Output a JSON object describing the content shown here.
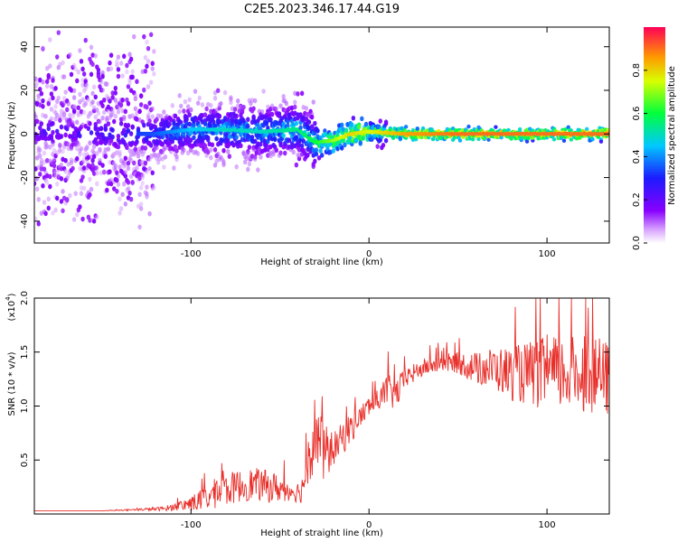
{
  "figure": {
    "title": "C2E5.2023.346.17.44.G19"
  },
  "chart_data": [
    {
      "type": "heatmap",
      "title": "C2E5.2023.346.17.44.G19",
      "xlabel": "Height of straight line (km)",
      "ylabel": "Frequency (Hz)",
      "xlim": [
        -188,
        135
      ],
      "ylim": [
        -50,
        49
      ],
      "xticks": [
        -100,
        0,
        100
      ],
      "xtick_labels": [
        "-100",
        "0",
        "100"
      ],
      "yticks": [
        -40,
        -20,
        0,
        20,
        40
      ],
      "ytick_labels": [
        "-40",
        "-20",
        "0",
        "20",
        "40"
      ],
      "grid": false,
      "description_points": {
        "x": [
          -180,
          -160,
          -140,
          -120,
          -100,
          -80,
          -60,
          -40,
          -30,
          -20,
          -10,
          0,
          20,
          50,
          80,
          110,
          130
        ],
        "center_freq": [
          1,
          0,
          0,
          0,
          2,
          2,
          1,
          2,
          -4,
          -3,
          0,
          1,
          0,
          0,
          0,
          0,
          0
        ],
        "peak_amplitude": [
          0.25,
          0.25,
          0.3,
          0.35,
          0.45,
          0.5,
          0.5,
          0.55,
          0.6,
          0.7,
          0.8,
          0.75,
          0.85,
          0.9,
          0.9,
          0.9,
          0.9
        ]
      },
      "colorbar": {
        "label": "Normalized spectral amplitude",
        "range": [
          0,
          1
        ],
        "ticks": [
          0.0,
          0.2,
          0.4,
          0.6,
          0.8
        ],
        "tick_labels": [
          "0.0",
          "0.2",
          "0.4",
          "0.6",
          "0.8"
        ],
        "colormap": "rainbow-white-to-red"
      }
    },
    {
      "type": "line",
      "xlabel": "Height of straight line (km)",
      "ylabel": "SNR (10 * v/v)",
      "y_multiplier": "(x10",
      "y_multiplier_exp": "4",
      "xlim": [
        -188,
        135
      ],
      "ylim": [
        0,
        2.0
      ],
      "xticks": [
        -100,
        0,
        100
      ],
      "xtick_labels": [
        "-100",
        "0",
        "100"
      ],
      "yticks": [
        0.5,
        1.0,
        1.5,
        2.0
      ],
      "ytick_labels": [
        "0.5",
        "1.0",
        "1.5",
        "2.0"
      ],
      "grid": false,
      "series": [
        {
          "color": "#e8302b",
          "x": [
            -188,
            -170,
            -150,
            -130,
            -115,
            -105,
            -95,
            -85,
            -75,
            -65,
            -55,
            -45,
            -38,
            -33,
            -30,
            -26,
            -20,
            -15,
            -10,
            -5,
            0,
            5,
            10,
            15,
            20,
            30,
            40,
            50,
            60,
            70,
            80,
            90,
            100,
            110,
            120,
            130,
            135
          ],
          "y": [
            0.03,
            0.03,
            0.03,
            0.04,
            0.05,
            0.08,
            0.12,
            0.2,
            0.25,
            0.28,
            0.25,
            0.22,
            0.2,
            0.6,
            0.8,
            0.55,
            0.6,
            0.7,
            0.8,
            0.9,
            1.0,
            1.05,
            1.15,
            1.1,
            1.25,
            1.35,
            1.4,
            1.4,
            1.35,
            1.35,
            1.3,
            1.3,
            1.3,
            1.3,
            1.3,
            1.25,
            1.25
          ],
          "noise": [
            0.0,
            0.0,
            0.0,
            0.01,
            0.02,
            0.05,
            0.1,
            0.15,
            0.15,
            0.15,
            0.15,
            0.1,
            0.1,
            0.3,
            0.35,
            0.3,
            0.15,
            0.15,
            0.15,
            0.1,
            0.1,
            0.1,
            0.15,
            0.15,
            0.1,
            0.08,
            0.08,
            0.1,
            0.15,
            0.2,
            0.25,
            0.3,
            0.35,
            0.35,
            0.35,
            0.35,
            0.35
          ]
        }
      ]
    }
  ]
}
